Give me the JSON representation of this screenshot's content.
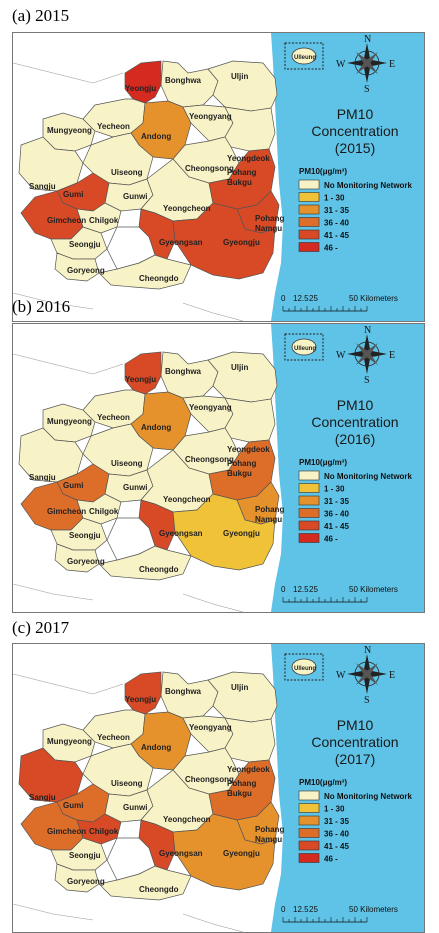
{
  "captions": [
    "(a) 2015",
    "(b) 2016",
    "(c) 2017"
  ],
  "map_title_line1": "PM10",
  "map_title_line2": "Concentration",
  "years": [
    "(2015)",
    "(2016)",
    "(2017)"
  ],
  "legend": {
    "title": "PM10(μg/m³)",
    "items": [
      {
        "label": "No Monitoring Network",
        "color": "#f8f3c6"
      },
      {
        "label": "1 - 30",
        "color": "#f0c238"
      },
      {
        "label": "31 - 35",
        "color": "#e6922c"
      },
      {
        "label": "36 - 40",
        "color": "#dd6e2a"
      },
      {
        "label": "41 - 45",
        "color": "#d84a26"
      },
      {
        "label": "46 -",
        "color": "#d42a20"
      }
    ]
  },
  "scale_bar": {
    "ticks": [
      "0",
      "12.5",
      "25",
      "50 Kilometers"
    ]
  },
  "compass": {
    "n": "N",
    "s": "S",
    "e": "E",
    "w": "W"
  },
  "sea_color": "#5ec3e6",
  "island_label": "Ulleung",
  "region_names": {
    "yeongju": "Yeongju",
    "bonghwa": "Bonghwa",
    "uljin": "Uljin",
    "mungyeong": "Mungyeong",
    "yecheon": "Yecheon",
    "andong": "Andong",
    "yeongyang": "Yeongyang",
    "yeongdeok": "Yeongdeok",
    "sangju": "Sangju",
    "uiseong": "Uiseong",
    "cheongsong": "Cheongsong",
    "gumi": "Gumi",
    "gunwi": "Gunwi",
    "pohang_bukgu_1": "Pohang",
    "pohang_bukgu_2": "Bukgu",
    "gimcheon": "Gimcheon",
    "chilgok": "Chilgok",
    "yeongcheon": "Yeongcheon",
    "pohang_namgu_1": "Pohang",
    "pohang_namgu_2": "Namgu",
    "seongju": "Seongju",
    "gyeongsan": "Gyeongsan",
    "gyeongju": "Gyeongju",
    "goryeong": "Goryeong",
    "cheongdo": "Cheongdo"
  },
  "region_colors": [
    {
      "yeongju": "#d42a20",
      "andong": "#e6922c",
      "gumi": "#d84a26",
      "gimcheon": "#d84a26",
      "gyeongsan": "#d84a26",
      "pohang_bukgu": "#d84a26",
      "pohang_namgu": "#d84a26",
      "gyeongju": "#d84a26",
      "sangju": "#f8f3c6",
      "chilgok": "#f8f3c6"
    },
    {
      "yeongju": "#d84a26",
      "andong": "#e6922c",
      "gumi": "#dd6e2a",
      "gimcheon": "#dd6e2a",
      "gyeongsan": "#d84a26",
      "pohang_bukgu": "#dd6e2a",
      "pohang_namgu": "#e6922c",
      "gyeongju": "#f0c238",
      "sangju": "#f8f3c6",
      "chilgok": "#f8f3c6"
    },
    {
      "yeongju": "#d84a26",
      "andong": "#e6922c",
      "gumi": "#dd6e2a",
      "gimcheon": "#dd6e2a",
      "gyeongsan": "#d84a26",
      "pohang_bukgu": "#dd6e2a",
      "pohang_namgu": "#e6922c",
      "gyeongju": "#e6922c",
      "sangju": "#d84a26",
      "chilgok": "#d84a26"
    }
  ]
}
